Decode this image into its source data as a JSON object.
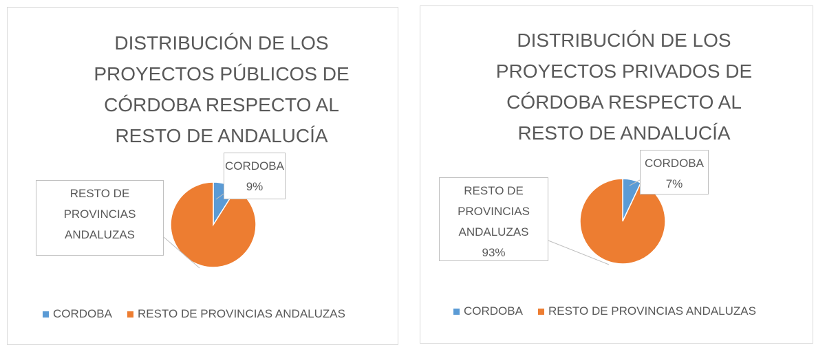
{
  "chart_data": [
    {
      "type": "pie",
      "title": "DISTRIBUCIÓN DE LOS PROYECTOS PÚBLICOS DE CÓRDOBA RESPECTO AL RESTO DE ANDALUCÍA",
      "categories": [
        "CORDOBA",
        "RESTO DE PROVINCIAS ANDALUZAS"
      ],
      "values": [
        9,
        91
      ],
      "value_labels": [
        "9%",
        null
      ],
      "colors": [
        "#5b9bd5",
        "#ed7d31"
      ],
      "legend": "bottom"
    },
    {
      "type": "pie",
      "title": "DISTRIBUCIÓN DE LOS PROYECTOS PRIVADOS DE CÓRDOBA RESPECTO AL RESTO DE ANDALUCÍA",
      "categories": [
        "CORDOBA",
        "RESTO DE PROVINCIAS ANDALUZAS"
      ],
      "values": [
        7,
        93
      ],
      "value_labels": [
        "7%",
        "93%"
      ],
      "colors": [
        "#5b9bd5",
        "#ed7d31"
      ],
      "legend": "bottom"
    }
  ]
}
